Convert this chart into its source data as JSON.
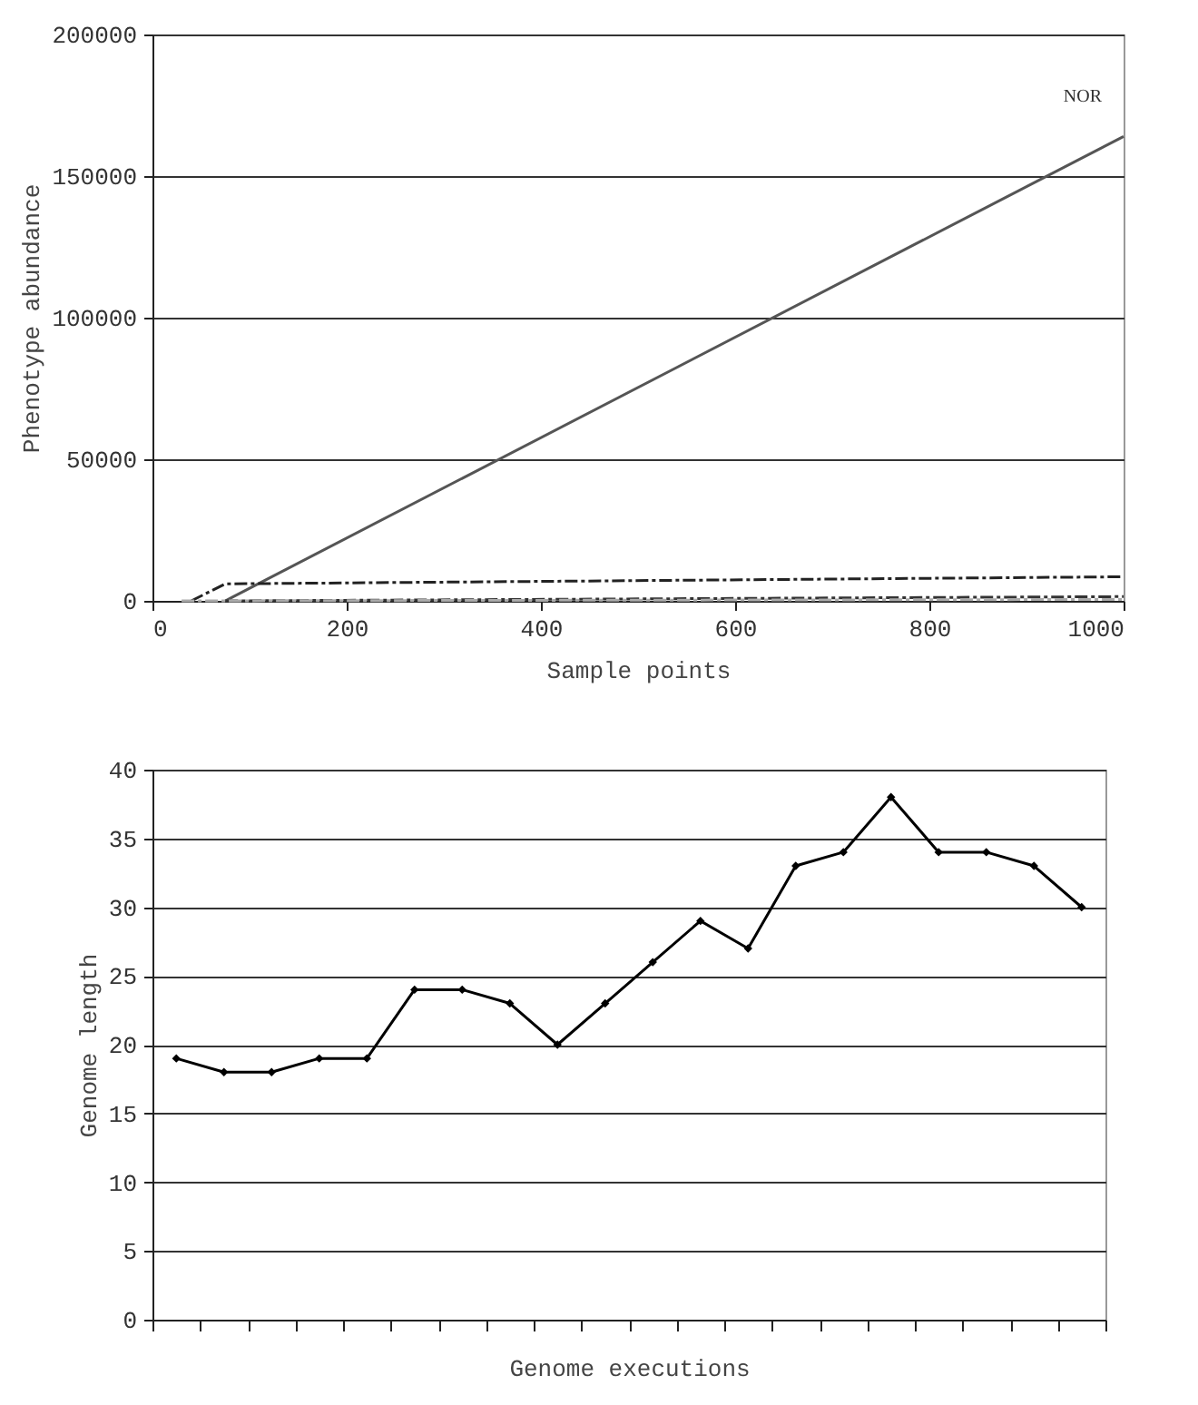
{
  "chart_data": [
    {
      "type": "line",
      "xlabel": "Sample points",
      "ylabel": "Phenotype abundance",
      "xlim": [
        0,
        1000
      ],
      "xticks": [
        0,
        200,
        400,
        600,
        800,
        1000
      ],
      "ylim": [
        0,
        200000
      ],
      "yticks": [
        0,
        50000,
        100000,
        150000,
        200000
      ],
      "grid": "y",
      "marker": "none",
      "series": [
        {
          "name": "NOR",
          "color": "#555555",
          "x": [
            75,
            1000
          ],
          "values": [
            0,
            164000
          ],
          "line_style": "solid"
        },
        {
          "color": "#222222",
          "x": [
            40,
            75,
            1000
          ],
          "values": [
            0,
            6000,
            8500
          ],
          "line_style": "dashed"
        },
        {
          "color": "#333333",
          "x": [
            75,
            1000
          ],
          "values": [
            0,
            1500
          ],
          "line_style": "dashed"
        },
        {
          "color": "#aaaaaa",
          "x": [
            30,
            1000
          ],
          "values": [
            0,
            500
          ],
          "line_style": "dashed"
        }
      ]
    },
    {
      "type": "line",
      "xlabel": "Genome executions",
      "ylabel": "Genome length",
      "categories": [
        null,
        null,
        null,
        null,
        null,
        null,
        null,
        null,
        null,
        null,
        null,
        null,
        null,
        null,
        null,
        null,
        null,
        null,
        null,
        null
      ],
      "ylim": [
        0,
        40
      ],
      "yticks": [
        0,
        5,
        10,
        15,
        20,
        25,
        30,
        35,
        40
      ],
      "grid": "y",
      "marker": "diamond",
      "tick_labels": "y",
      "series": [
        {
          "color": "#000000",
          "values": [
            19,
            18,
            18,
            19,
            19,
            24,
            24,
            23,
            20,
            23,
            26,
            29,
            27,
            33,
            34,
            38,
            34,
            34,
            33,
            30
          ],
          "line_style": "solid"
        }
      ]
    }
  ]
}
